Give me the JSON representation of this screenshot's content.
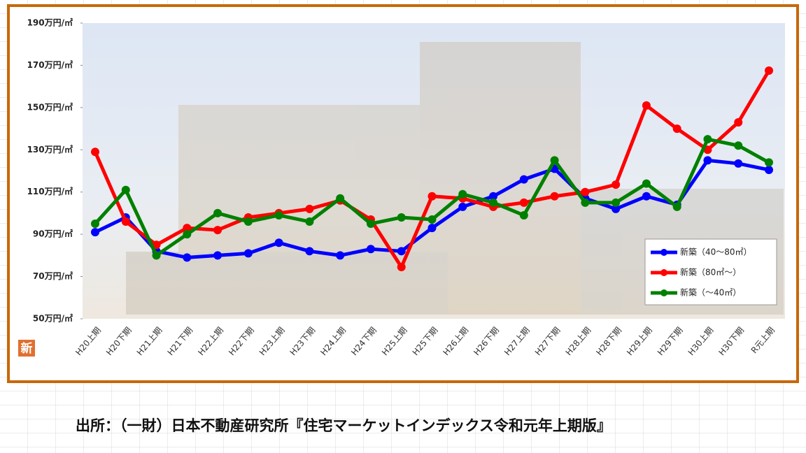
{
  "chart_data": {
    "type": "line",
    "categories": [
      "H20上期",
      "H20下期",
      "H21上期",
      "H21下期",
      "H22上期",
      "H22下期",
      "H23上期",
      "H23下期",
      "H24上期",
      "H24下期",
      "H25上期",
      "H25下期",
      "H26上期",
      "H26下期",
      "H27上期",
      "H27下期",
      "H28上期",
      "H28下期",
      "H29上期",
      "H29下期",
      "H30上期",
      "H30下期",
      "R元上期"
    ],
    "series": [
      {
        "name": "新築（40～80㎡）",
        "color": "#0000ff",
        "values": [
          91,
          98,
          82,
          79,
          80,
          81,
          86,
          82,
          80,
          83,
          82,
          93,
          103,
          108,
          116,
          121,
          107,
          102,
          108,
          104,
          125,
          123.5,
          120.5
        ]
      },
      {
        "name": "新築（80㎡～）",
        "color": "#ff0000",
        "values": [
          129,
          96,
          85,
          93,
          92,
          98,
          100,
          102,
          106,
          97,
          74.5,
          108,
          107,
          103,
          105,
          108,
          110,
          113.5,
          151,
          140,
          130,
          143,
          167.5
        ]
      },
      {
        "name": "新築（～40㎡）",
        "color": "#008000",
        "values": [
          95,
          111,
          80,
          90,
          100,
          96,
          99,
          96,
          107,
          95,
          98,
          97,
          109,
          105,
          99,
          125,
          105,
          105,
          114,
          103,
          135,
          132,
          124
        ]
      }
    ],
    "ylim": [
      50,
      190
    ],
    "yticks": [
      {
        "value": 50,
        "label": "50万円/㎡"
      },
      {
        "value": 70,
        "label": "70万円/㎡"
      },
      {
        "value": 90,
        "label": "90万円/㎡"
      },
      {
        "value": 110,
        "label": "110万円/㎡"
      },
      {
        "value": 130,
        "label": "130万円/㎡"
      },
      {
        "value": 150,
        "label": "150万円/㎡"
      },
      {
        "value": 170,
        "label": "170万円/㎡"
      },
      {
        "value": 190,
        "label": "190万円/㎡"
      }
    ],
    "legend": "lower right",
    "icon": "新",
    "source": "出所：（一財）日本不動産研究所『住宅マーケットインデックス令和元年上期版』"
  }
}
